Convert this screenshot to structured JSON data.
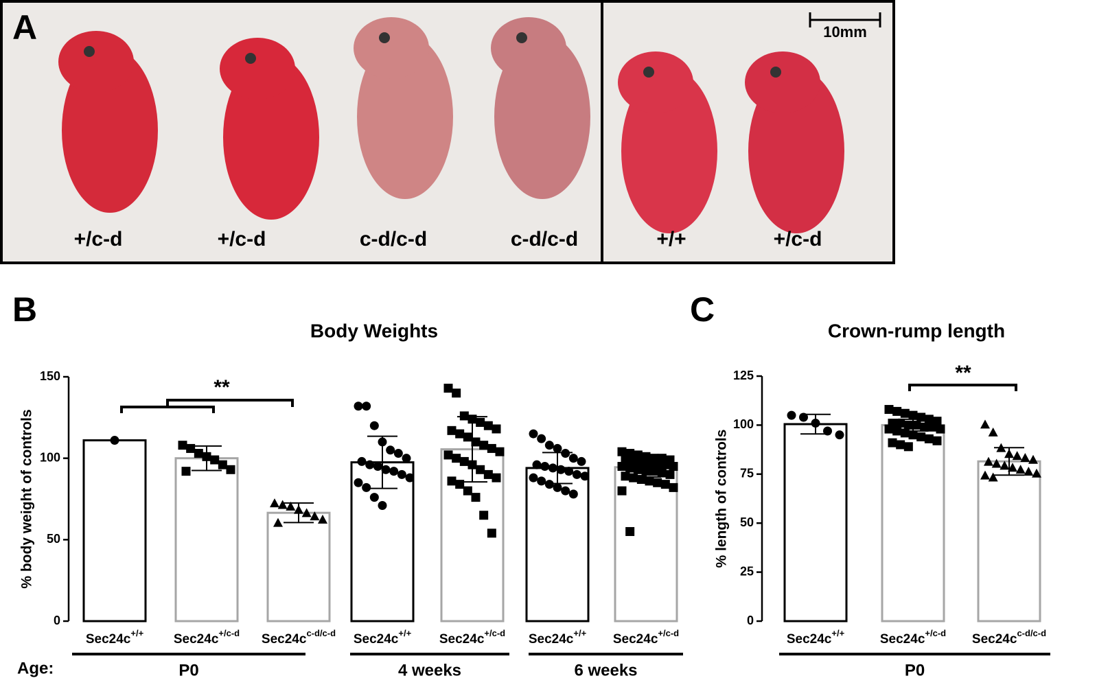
{
  "photo": {
    "panel": "A",
    "labels": [
      "+/c-d",
      "+/c-d",
      "c-d/c-d",
      "c-d/c-d",
      "+/+",
      "+/c-d"
    ],
    "scale_bar": "10mm"
  },
  "chart_data": [
    {
      "type": "bar",
      "panel": "B",
      "title": "Body Weights",
      "y_label": "% body weight of controls",
      "gene": "Sec24c",
      "age_label": "Age:",
      "ylim": [
        0,
        150
      ],
      "yticks": [
        0,
        50,
        100,
        150
      ],
      "annotation": "**",
      "groups": [
        {
          "label": "P0",
          "categories": [
            "+/+",
            "+/c-d",
            "c-d/c-d"
          ],
          "values": [
            111,
            100,
            66.5
          ],
          "errors": [
            null,
            7.5,
            6
          ],
          "markers": [
            "circle",
            "square",
            "triangle"
          ],
          "edge_colors": [
            "#000000",
            "#a6a6a6",
            "#a6a6a6"
          ],
          "points": [
            [
              111
            ],
            [
              108,
              106,
              103,
              101,
              99,
              96,
              93,
              92
            ],
            [
              72,
              71,
              70,
              68,
              66,
              64,
              62,
              60
            ]
          ]
        },
        {
          "label": "4 weeks",
          "categories": [
            "+/+",
            "+/c-d"
          ],
          "values": [
            97.5,
            105.5
          ],
          "errors": [
            16,
            20
          ],
          "markers": [
            "circle",
            "square"
          ],
          "edge_colors": [
            "#000000",
            "#a6a6a6"
          ],
          "points": [
            [
              132,
              132,
              120,
              110,
              105,
              103,
              100,
              98,
              96,
              95,
              93,
              92,
              90,
              88,
              85,
              82,
              76,
              71
            ],
            [
              143,
              140,
              126,
              124,
              122,
              120,
              118,
              117,
              115,
              113,
              110,
              108,
              106,
              104,
              102,
              100,
              98,
              96,
              93,
              90,
              88,
              86,
              84,
              80,
              76,
              65,
              54
            ]
          ]
        },
        {
          "label": "6 weeks",
          "categories": [
            "+/+",
            "+/c-d"
          ],
          "values": [
            94,
            94.5
          ],
          "errors": [
            9.5,
            6
          ],
          "markers": [
            "circle",
            "square"
          ],
          "edge_colors": [
            "#000000",
            "#a6a6a6"
          ],
          "points": [
            [
              115,
              112,
              108,
              106,
              103,
              100,
              98,
              96,
              95,
              94,
              93,
              92,
              90,
              89,
              88,
              86,
              84,
              82,
              80,
              78
            ],
            [
              104,
              103,
              102,
              101,
              100,
              100,
              99,
              99,
              98,
              97,
              97,
              96,
              96,
              95,
              95,
              94,
              93,
              92,
              92,
              91,
              90,
              89,
              88,
              87,
              86,
              85,
              84,
              82,
              80,
              55
            ]
          ]
        }
      ]
    },
    {
      "type": "bar",
      "panel": "C",
      "title": "Crown-rump length",
      "y_label": "% length of controls",
      "gene": "Sec24c",
      "ylim": [
        0,
        125
      ],
      "yticks": [
        0,
        25,
        50,
        75,
        100,
        125
      ],
      "annotation": "**",
      "groups": [
        {
          "label": "P0",
          "categories": [
            "+/+",
            "+/c-d",
            "c-d/c-d"
          ],
          "values": [
            100.5,
            100,
            81.5
          ],
          "errors": [
            5,
            3,
            7
          ],
          "markers": [
            "circle",
            "square",
            "triangle"
          ],
          "edge_colors": [
            "#000000",
            "#a6a6a6",
            "#a6a6a6"
          ],
          "points": [
            [
              105,
              104,
              101,
              97,
              95
            ],
            [
              108,
              107,
              106,
              105,
              104,
              103,
              102,
              101,
              101,
              100,
              100,
              99,
              99,
              98,
              98,
              97,
              96,
              95,
              94,
              93,
              92,
              91,
              90,
              89
            ],
            [
              100,
              96,
              88,
              85,
              84,
              83,
              82,
              81,
              80,
              79,
              78,
              77,
              76,
              75,
              74,
              73
            ]
          ]
        }
      ]
    }
  ]
}
